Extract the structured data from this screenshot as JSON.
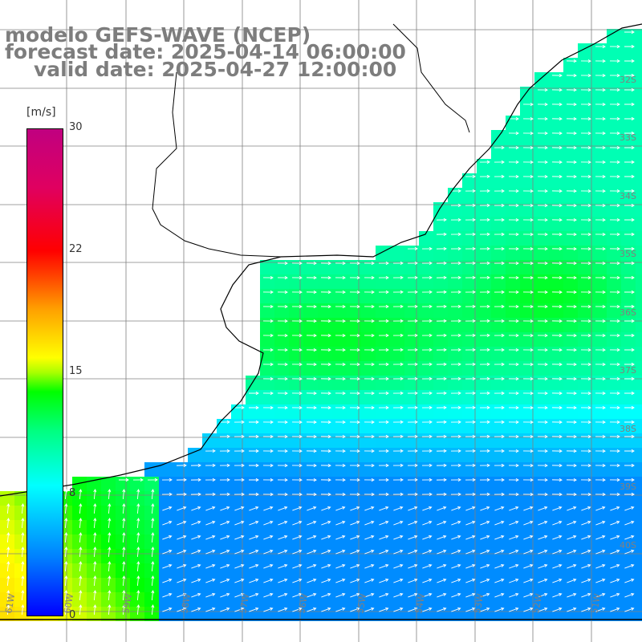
{
  "title": {
    "line1": "modelo GEFS-WAVE (NCEP)",
    "line2": "forecast date: 2025-04-14 06:00:00",
    "line3": "valid date: 2025-04-27 12:00:00"
  },
  "colorbar": {
    "unit": "[m/s]",
    "ticks": [
      "30",
      "22",
      "15",
      "8",
      "0"
    ],
    "min": 0,
    "max": 30
  },
  "lat_labels": [
    "32S",
    "33S",
    "34S",
    "35S",
    "36S",
    "37S",
    "38S",
    "39S",
    "40S"
  ],
  "lon_labels": [
    "61W",
    "60W",
    "59W",
    "58W",
    "57W",
    "56W",
    "55W",
    "54W",
    "53W",
    "52W",
    "51W"
  ],
  "colors": {
    "title": "#7d7d7d",
    "arrows": "#ffffff",
    "coast": "#000000",
    "grid": "#808080",
    "land": "#ffffff"
  }
}
